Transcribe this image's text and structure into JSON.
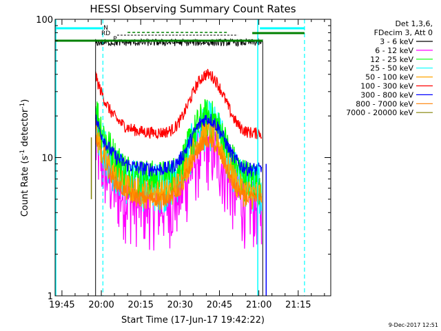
{
  "chart_data": {
    "type": "line",
    "title": "HESSI Observing Summary Count Rates",
    "xlabel": "Start Time (17-Jun-17 19:42:22)",
    "ylabel_base": "Count Rate (s",
    "ylabel_exp1": "-1",
    "ylabel_mid": " detector",
    "ylabel_exp2": "-1",
    "ylabel_end": ")",
    "yscale": "log",
    "ylim": [
      1,
      100
    ],
    "xlim_minutes": [
      -17.6,
      87.4
    ],
    "x_unit": "minutes after 20:00",
    "x_ticks": [
      {
        "label": "19:45",
        "min": -15
      },
      {
        "label": "20:00",
        "min": 0
      },
      {
        "label": "20:15",
        "min": 15
      },
      {
        "label": "20:30",
        "min": 30
      },
      {
        "label": "20:45",
        "min": 45
      },
      {
        "label": "21:00",
        "min": 60
      },
      {
        "label": "21:15",
        "min": 75
      }
    ],
    "y_tick_labels": [
      {
        "label": "1",
        "value": 1
      },
      {
        "label": "10",
        "value": 10
      },
      {
        "label": "100",
        "value": 100
      }
    ],
    "legend_header": [
      "Det 1,3,6,",
      "FDecim 3, Att 0"
    ],
    "series": [
      {
        "name": "3 - 6 keV",
        "color": "#000000"
      },
      {
        "name": "6 - 12 keV",
        "color": "#ff00ff"
      },
      {
        "name": "12 - 25 keV",
        "color": "#00ff00"
      },
      {
        "name": "25 - 50 keV",
        "color": "#00ffff"
      },
      {
        "name": "50 - 100 keV",
        "color": "#ffa500"
      },
      {
        "name": "100 - 300 keV",
        "color": "#ff0000"
      },
      {
        "name": "300 - 800 keV",
        "color": "#0000ff"
      },
      {
        "name": "800 - 7000 keV",
        "color": "#ff8000"
      },
      {
        "name": "7000 - 20000 keV",
        "color": "#808000"
      }
    ],
    "annotations": [
      {
        "label": "N"
      },
      {
        "label": "RD"
      },
      {
        "label": "P"
      }
    ],
    "flag_colors": {
      "saa_night": "#00ffff",
      "flare": "#008000",
      "attenuator": "#00ffff"
    },
    "legend_position": "right"
  },
  "footer": {
    "date": "9-Dec-2017 12:51"
  }
}
